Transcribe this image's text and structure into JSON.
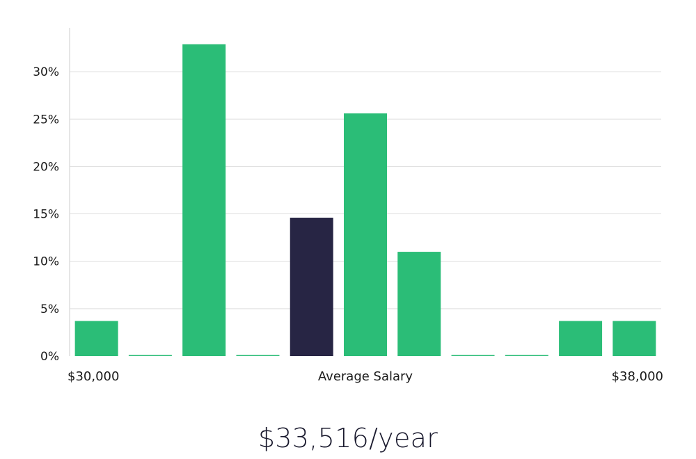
{
  "chart_data": {
    "type": "bar",
    "title": "",
    "xlabel": "Average Salary",
    "x_min_label": "$30,000",
    "x_max_label": "$38,000",
    "ylabel": "",
    "ylim": [
      0,
      35
    ],
    "yticks": [
      "0%",
      "5%",
      "10%",
      "15%",
      "20%",
      "25%",
      "30%"
    ],
    "ytick_values": [
      0,
      5,
      10,
      15,
      20,
      25,
      30
    ],
    "grid": true,
    "legend": "none",
    "values": [
      3.7,
      0,
      32.9,
      0,
      14.6,
      25.6,
      11.0,
      0,
      0,
      3.7,
      3.7
    ],
    "highlight_index": 4,
    "colors": {
      "bar": "#2bbd77",
      "highlight": "#272544",
      "grid": "#dddddd",
      "axis": "#cccccc"
    }
  },
  "salary_label": "$33,516/year"
}
